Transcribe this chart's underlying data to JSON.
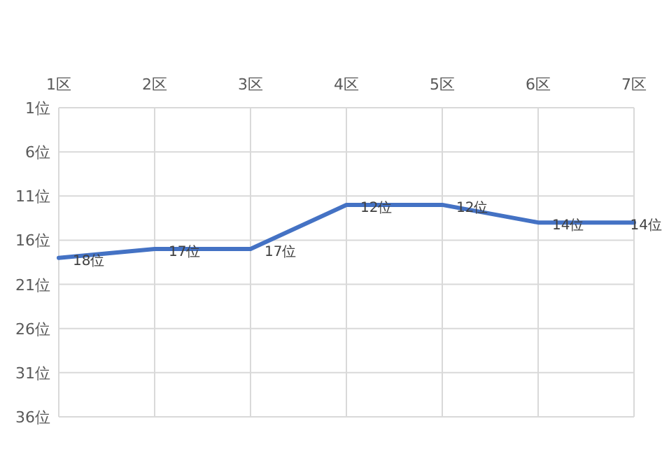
{
  "chart_data": {
    "type": "line",
    "categories": [
      "1区",
      "2区",
      "3区",
      "4区",
      "5区",
      "6区",
      "7区"
    ],
    "series": [
      {
        "color": "#4472c4",
        "values": [
          18,
          17,
          17,
          12,
          12,
          14,
          14
        ],
        "value_labels": [
          "18位",
          "17位",
          "17位",
          "12位",
          "12位",
          "14位",
          "14位"
        ]
      }
    ],
    "ylim": [
      36,
      1
    ],
    "yticks": [
      {
        "value": 1,
        "label": "1位"
      },
      {
        "value": 6,
        "label": "6位"
      },
      {
        "value": 11,
        "label": "11位"
      },
      {
        "value": 16,
        "label": "16位"
      },
      {
        "value": 21,
        "label": "21位"
      },
      {
        "value": 26,
        "label": "26位"
      },
      {
        "value": 31,
        "label": "31位"
      },
      {
        "value": 36,
        "label": "36位"
      }
    ],
    "grid": true
  }
}
